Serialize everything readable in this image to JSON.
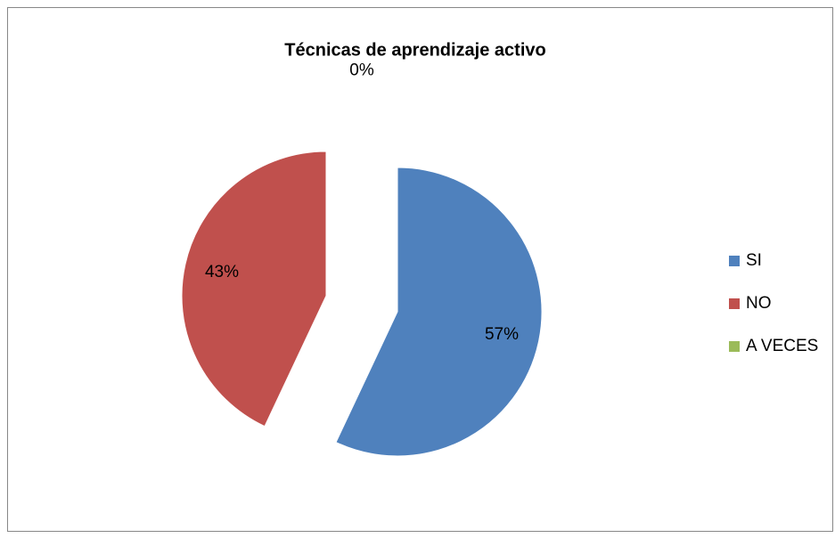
{
  "chart_data": {
    "type": "pie",
    "title": "Técnicas de aprendizaje activo",
    "categories": [
      "SI",
      "NO",
      "A VECES"
    ],
    "values": [
      57,
      43,
      0
    ],
    "value_labels": [
      "57%",
      "43%",
      "0%"
    ],
    "colors": [
      "#4f81bd",
      "#c0504d",
      "#9bbb59"
    ],
    "exploded": true,
    "legend": "right"
  }
}
